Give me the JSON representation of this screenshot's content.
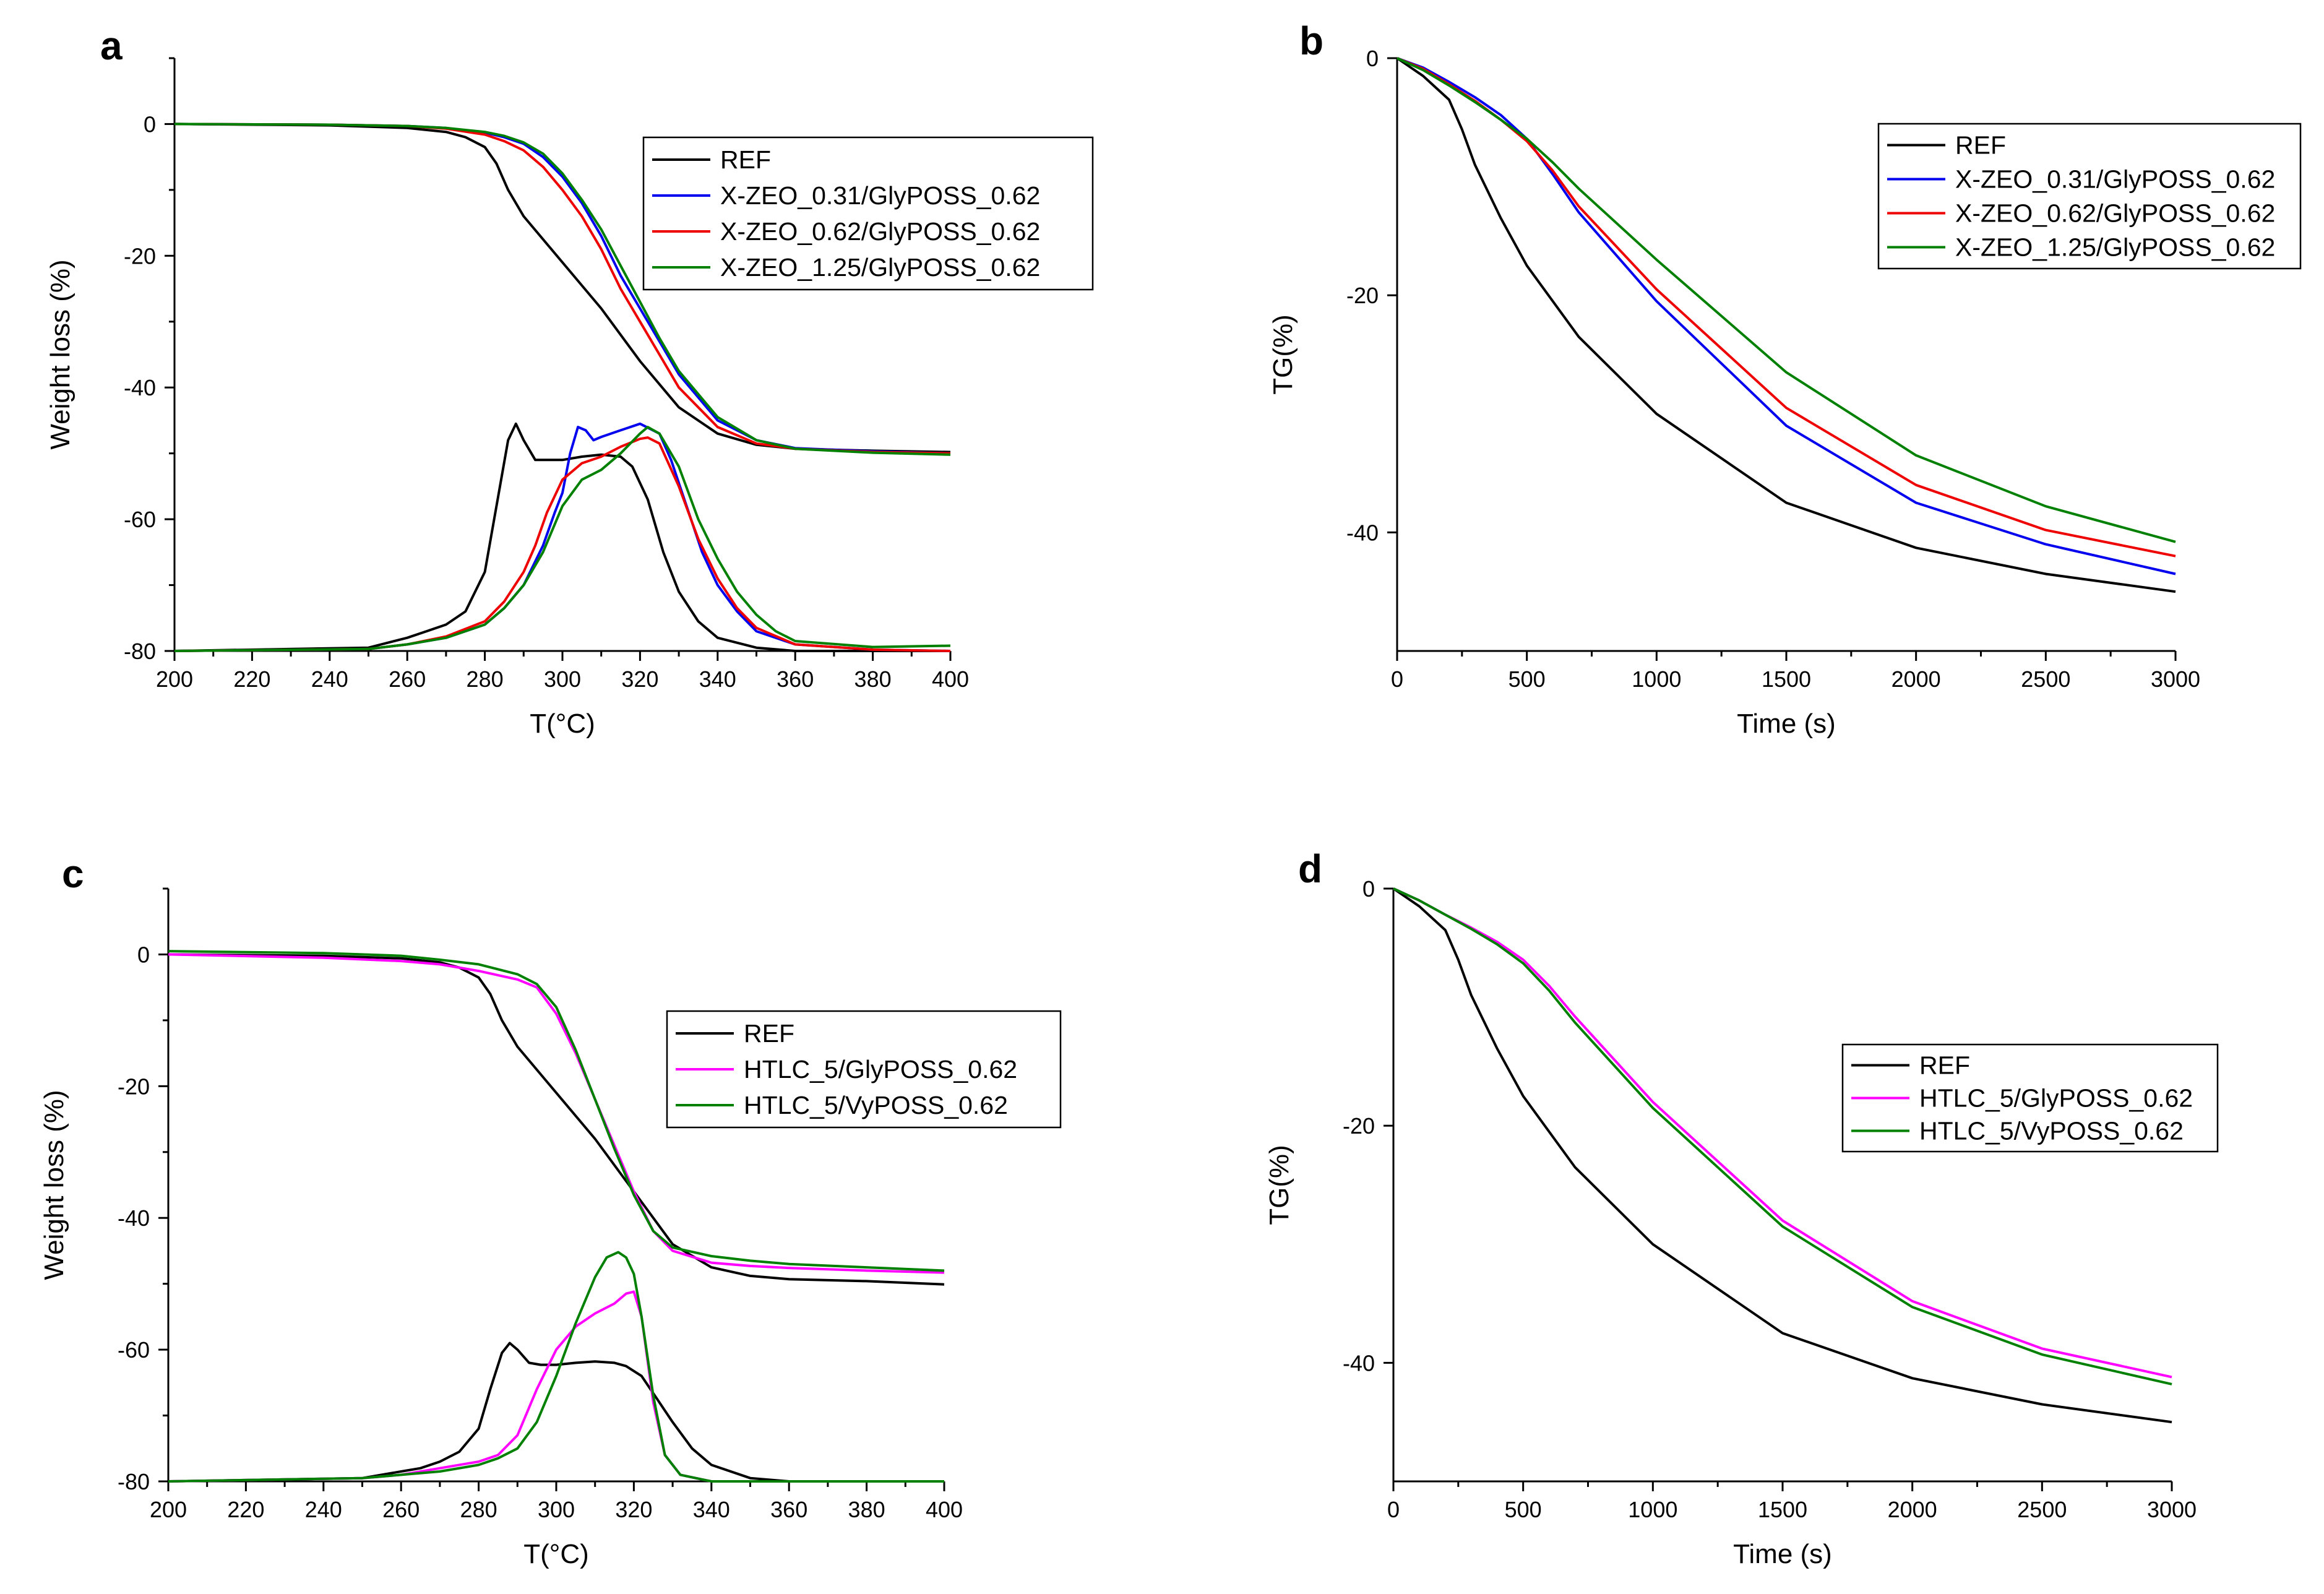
{
  "chart_data": [
    {
      "panel": "a",
      "type": "line",
      "title": "",
      "xlabel": "T(°C)",
      "ylabel": "Weight loss (%)",
      "xlim": [
        200,
        400
      ],
      "ylim": [
        -80,
        10
      ],
      "xticks": [
        200,
        220,
        240,
        260,
        280,
        300,
        320,
        340,
        360,
        380,
        400
      ],
      "yticks": [
        -80,
        -60,
        -40,
        -20,
        0
      ],
      "legend_position": "top-right",
      "legend": [
        "REF",
        "X-ZEO_0.31/GlyPOSS_0.62",
        "X-ZEO_0.62/GlyPOSS_0.62",
        "X-ZEO_1.25/GlyPOSS_0.62"
      ],
      "series": [
        {
          "name": "REF",
          "color": "#000000",
          "x": [
            200,
            240,
            260,
            270,
            275,
            280,
            283,
            286,
            290,
            300,
            310,
            320,
            330,
            340,
            350,
            360,
            380,
            400
          ],
          "y": [
            0,
            -0.2,
            -0.6,
            -1.2,
            -2,
            -3.5,
            -6,
            -10,
            -14,
            -21,
            -28,
            -36,
            -43,
            -47,
            -48.7,
            -49.3,
            -49.6,
            -49.8
          ]
        },
        {
          "name": "X-ZEO_0.31/GlyPOSS_0.62",
          "color": "#0000ee",
          "x": [
            200,
            240,
            260,
            270,
            280,
            285,
            290,
            295,
            300,
            305,
            310,
            315,
            320,
            325,
            330,
            340,
            350,
            360,
            380,
            400
          ],
          "y": [
            0,
            -0.1,
            -0.3,
            -0.6,
            -1.3,
            -2,
            -3,
            -5,
            -8,
            -12,
            -17,
            -23,
            -28,
            -33,
            -38,
            -45,
            -48,
            -49.2,
            -49.7,
            -50
          ]
        },
        {
          "name": "X-ZEO_0.62/GlyPOSS_0.62",
          "color": "#ee0000",
          "x": [
            200,
            240,
            260,
            270,
            280,
            285,
            290,
            295,
            300,
            305,
            310,
            315,
            320,
            325,
            330,
            340,
            350,
            360,
            380,
            400
          ],
          "y": [
            0,
            -0.1,
            -0.3,
            -0.7,
            -1.6,
            -2.6,
            -4,
            -6.5,
            -10,
            -14,
            -19,
            -25,
            -30,
            -35,
            -40,
            -46,
            -48.5,
            -49.3,
            -49.8,
            -50
          ]
        },
        {
          "name": "X-ZEO_1.25/GlyPOSS_0.62",
          "color": "#008000",
          "x": [
            200,
            240,
            260,
            270,
            280,
            285,
            290,
            295,
            300,
            305,
            310,
            315,
            320,
            325,
            330,
            340,
            350,
            360,
            380,
            400
          ],
          "y": [
            0,
            -0.1,
            -0.3,
            -0.6,
            -1.2,
            -1.8,
            -2.8,
            -4.5,
            -7.5,
            -11.5,
            -16,
            -21.5,
            -27,
            -32.5,
            -37.5,
            -44.5,
            -48,
            -49.3,
            -49.9,
            -50.2
          ]
        },
        {
          "name": "REF DTG",
          "color": "#000000",
          "x": [
            200,
            250,
            260,
            265,
            270,
            275,
            280,
            283,
            286,
            288,
            290,
            293,
            296,
            300,
            305,
            310,
            315,
            318,
            322,
            326,
            330,
            335,
            340,
            350,
            360,
            380,
            400
          ],
          "y": [
            -80,
            -79.5,
            -78,
            -77,
            -76,
            -74,
            -68,
            -58,
            -48,
            -45.5,
            -48,
            -51,
            -51,
            -51,
            -50.5,
            -50.2,
            -50.5,
            -52,
            -57,
            -65,
            -71,
            -75.5,
            -78,
            -79.5,
            -80,
            -80,
            -80
          ]
        },
        {
          "name": "X-ZEO_0.31 DTG",
          "color": "#0000ee",
          "x": [
            200,
            250,
            260,
            270,
            280,
            285,
            290,
            295,
            298,
            300,
            302,
            304,
            306,
            308,
            310,
            315,
            320,
            325,
            328,
            332,
            336,
            340,
            345,
            350,
            360,
            380,
            400
          ],
          "y": [
            -80,
            -79.7,
            -79,
            -78,
            -76,
            -73.5,
            -70,
            -64,
            -59,
            -56,
            -50,
            -46,
            -46.5,
            -48,
            -47.5,
            -46.5,
            -45.5,
            -47,
            -51,
            -58,
            -65,
            -70,
            -74,
            -77,
            -79,
            -79.8,
            -80
          ]
        },
        {
          "name": "X-ZEO_0.62 DTG",
          "color": "#ee0000",
          "x": [
            200,
            250,
            260,
            270,
            280,
            285,
            290,
            293,
            296,
            300,
            305,
            310,
            315,
            320,
            322,
            325,
            330,
            335,
            340,
            345,
            350,
            360,
            380,
            400
          ],
          "y": [
            -80,
            -79.7,
            -79,
            -77.8,
            -75.5,
            -72.5,
            -68,
            -64,
            -59,
            -54,
            -51.5,
            -50.5,
            -49,
            -47.8,
            -47.6,
            -48.5,
            -55,
            -63,
            -69,
            -73.5,
            -76.5,
            -79,
            -79.8,
            -80
          ]
        },
        {
          "name": "X-ZEO_1.25 DTG",
          "color": "#008000",
          "x": [
            200,
            250,
            260,
            270,
            280,
            285,
            290,
            295,
            300,
            305,
            310,
            315,
            320,
            322,
            325,
            330,
            335,
            340,
            345,
            350,
            355,
            360,
            380,
            400
          ],
          "y": [
            -80,
            -79.7,
            -79,
            -78,
            -76,
            -73.5,
            -70,
            -65,
            -58,
            -54,
            -52.5,
            -50,
            -47,
            -46,
            -47,
            -52,
            -60,
            -66,
            -71,
            -74.5,
            -77,
            -78.5,
            -79.4,
            -79.2
          ]
        }
      ]
    },
    {
      "panel": "b",
      "type": "line",
      "title": "",
      "xlabel": "Time (s)",
      "ylabel": "TG(%)",
      "xlim": [
        0,
        3000
      ],
      "ylim": [
        -50,
        0
      ],
      "xticks": [
        0,
        500,
        1000,
        1500,
        2000,
        2500,
        3000
      ],
      "yticks": [
        -40,
        -20,
        0
      ],
      "legend_position": "top-right",
      "legend": [
        "REF",
        "X-ZEO_0.31/GlyPOSS_0.62",
        "X-ZEO_0.62/GlyPOSS_0.62",
        "X-ZEO_1.25/GlyPOSS_0.62"
      ],
      "series": [
        {
          "name": "REF",
          "color": "#000000",
          "x": [
            0,
            100,
            200,
            250,
            300,
            400,
            500,
            700,
            1000,
            1500,
            2000,
            2500,
            3000
          ],
          "y": [
            0,
            -1.5,
            -3.5,
            -6,
            -9,
            -13.5,
            -17.5,
            -23.5,
            -30,
            -37.5,
            -41.3,
            -43.5,
            -45
          ]
        },
        {
          "name": "X-ZEO_0.31/GlyPOSS_0.62",
          "color": "#0000ee",
          "x": [
            0,
            100,
            200,
            300,
            400,
            500,
            600,
            700,
            1000,
            1500,
            2000,
            2500,
            3000
          ],
          "y": [
            0,
            -0.8,
            -2,
            -3.3,
            -4.8,
            -6.8,
            -9.8,
            -13,
            -20.5,
            -31,
            -37.5,
            -41,
            -43.5
          ]
        },
        {
          "name": "X-ZEO_0.62/GlyPOSS_0.62",
          "color": "#ee0000",
          "x": [
            0,
            100,
            200,
            300,
            400,
            500,
            600,
            700,
            1000,
            1500,
            2000,
            2500,
            3000
          ],
          "y": [
            0,
            -0.9,
            -2.2,
            -3.6,
            -5.2,
            -7,
            -9.5,
            -12.5,
            -19.5,
            -29.5,
            -36,
            -39.8,
            -42
          ]
        },
        {
          "name": "X-ZEO_1.25/GlyPOSS_0.62",
          "color": "#008000",
          "x": [
            0,
            100,
            200,
            300,
            400,
            500,
            600,
            700,
            1000,
            1500,
            2000,
            2500,
            3000
          ],
          "y": [
            0,
            -1,
            -2.3,
            -3.7,
            -5.2,
            -6.8,
            -8.8,
            -11,
            -17,
            -26.5,
            -33.5,
            -37.8,
            -40.8
          ]
        }
      ]
    },
    {
      "panel": "c",
      "type": "line",
      "title": "",
      "xlabel": "T(°C)",
      "ylabel": "Weight loss (%)",
      "xlim": [
        200,
        400
      ],
      "ylim": [
        -80,
        10
      ],
      "xticks": [
        200,
        220,
        240,
        260,
        280,
        300,
        320,
        340,
        360,
        380,
        400
      ],
      "yticks": [
        -80,
        -60,
        -40,
        -20,
        0
      ],
      "legend_position": "center-right",
      "legend": [
        "REF",
        "HTLC_5/GlyPOSS_0.62",
        "HTLC_5/VyPOSS_0.62"
      ],
      "series": [
        {
          "name": "REF",
          "color": "#000000",
          "x": [
            200,
            240,
            260,
            270,
            275,
            280,
            283,
            286,
            290,
            300,
            310,
            320,
            325,
            330,
            340,
            350,
            360,
            380,
            400
          ],
          "y": [
            0,
            -0.2,
            -0.6,
            -1.2,
            -2,
            -3.5,
            -6,
            -10,
            -14,
            -21,
            -28,
            -36,
            -40,
            -44,
            -47.5,
            -48.8,
            -49.3,
            -49.6,
            -50.1
          ]
        },
        {
          "name": "HTLC_5/GlyPOSS_0.62",
          "color": "#ff00ff",
          "x": [
            200,
            240,
            260,
            270,
            280,
            290,
            295,
            300,
            305,
            310,
            315,
            320,
            325,
            330,
            340,
            350,
            360,
            380,
            400
          ],
          "y": [
            0,
            -0.5,
            -1,
            -1.5,
            -2.5,
            -3.8,
            -5,
            -9,
            -15,
            -22,
            -29,
            -36,
            -42,
            -45,
            -46.8,
            -47.3,
            -47.6,
            -48,
            -48.3
          ]
        },
        {
          "name": "HTLC_5/VyPOSS_0.62",
          "color": "#008000",
          "x": [
            200,
            240,
            260,
            270,
            280,
            290,
            295,
            300,
            305,
            310,
            315,
            320,
            325,
            330,
            340,
            350,
            360,
            380,
            400
          ],
          "y": [
            0.5,
            0.2,
            -0.2,
            -0.8,
            -1.5,
            -3,
            -4.5,
            -8,
            -14.5,
            -22,
            -29.5,
            -36.5,
            -42,
            -44.5,
            -45.8,
            -46.5,
            -47,
            -47.5,
            -48
          ]
        },
        {
          "name": "REF DTG",
          "color": "#000000",
          "x": [
            200,
            250,
            260,
            265,
            270,
            275,
            280,
            283,
            286,
            288,
            290,
            293,
            296,
            300,
            305,
            310,
            315,
            318,
            322,
            326,
            330,
            335,
            340,
            350,
            360,
            380,
            400
          ],
          "y": [
            -80,
            -79.5,
            -78.5,
            -78,
            -77,
            -75.5,
            -72,
            -66,
            -60.5,
            -59,
            -60,
            -62,
            -62.3,
            -62.3,
            -62,
            -61.8,
            -62,
            -62.5,
            -64,
            -67.5,
            -71,
            -75,
            -77.5,
            -79.5,
            -80,
            -80,
            -80
          ]
        },
        {
          "name": "HTLC_5/GlyPOSS_0.62 DTG",
          "color": "#ff00ff",
          "x": [
            200,
            250,
            260,
            270,
            280,
            285,
            290,
            295,
            300,
            305,
            310,
            315,
            318,
            320,
            322,
            325,
            328,
            332,
            340,
            350,
            360,
            380,
            400
          ],
          "y": [
            -80,
            -79.5,
            -79,
            -78,
            -77,
            -76,
            -73,
            -66,
            -60,
            -56.5,
            -54.5,
            -53,
            -51.5,
            -51.2,
            -55,
            -68,
            -76,
            -79,
            -80,
            -80,
            -80,
            -80,
            -80
          ]
        },
        {
          "name": "HTLC_5/VyPOSS_0.62 DTG",
          "color": "#008000",
          "x": [
            200,
            250,
            260,
            270,
            280,
            285,
            290,
            295,
            300,
            305,
            310,
            313,
            316,
            318,
            320,
            322,
            325,
            328,
            332,
            340,
            350,
            360,
            380,
            400
          ],
          "y": [
            -80,
            -79.5,
            -79,
            -78.5,
            -77.5,
            -76.5,
            -75,
            -71,
            -64,
            -56,
            -49,
            -46,
            -45.2,
            -46,
            -48.5,
            -55,
            -67,
            -76,
            -79,
            -80,
            -80,
            -80,
            -80,
            -80
          ]
        }
      ]
    },
    {
      "panel": "d",
      "type": "line",
      "title": "",
      "xlabel": "Time (s)",
      "ylabel": "TG(%)",
      "xlim": [
        0,
        3000
      ],
      "ylim": [
        -50,
        0
      ],
      "xticks": [
        0,
        500,
        1000,
        1500,
        2000,
        2500,
        3000
      ],
      "yticks": [
        -40,
        -20,
        0
      ],
      "legend_position": "center-right",
      "legend": [
        "REF",
        "HTLC_5/GlyPOSS_0.62",
        "HTLC_5/VyPOSS_0.62"
      ],
      "series": [
        {
          "name": "REF",
          "color": "#000000",
          "x": [
            0,
            100,
            200,
            250,
            300,
            400,
            500,
            700,
            1000,
            1500,
            2000,
            2500,
            3000
          ],
          "y": [
            0,
            -1.5,
            -3.5,
            -6,
            -9,
            -13.5,
            -17.5,
            -23.5,
            -30,
            -37.5,
            -41.3,
            -43.5,
            -45
          ]
        },
        {
          "name": "HTLC_5/GlyPOSS_0.62",
          "color": "#ff00ff",
          "x": [
            0,
            100,
            200,
            300,
            400,
            500,
            600,
            700,
            1000,
            1500,
            2000,
            2500,
            3000
          ],
          "y": [
            0,
            -1,
            -2.2,
            -3.3,
            -4.5,
            -6,
            -8.2,
            -10.8,
            -18,
            -28,
            -34.8,
            -38.8,
            -41.2
          ]
        },
        {
          "name": "HTLC_5/VyPOSS_0.62",
          "color": "#008000",
          "x": [
            0,
            100,
            200,
            300,
            400,
            500,
            600,
            700,
            1000,
            1500,
            2000,
            2500,
            3000
          ],
          "y": [
            0,
            -1,
            -2.2,
            -3.4,
            -4.7,
            -6.3,
            -8.6,
            -11.3,
            -18.5,
            -28.5,
            -35.3,
            -39.3,
            -41.8
          ]
        }
      ]
    }
  ]
}
